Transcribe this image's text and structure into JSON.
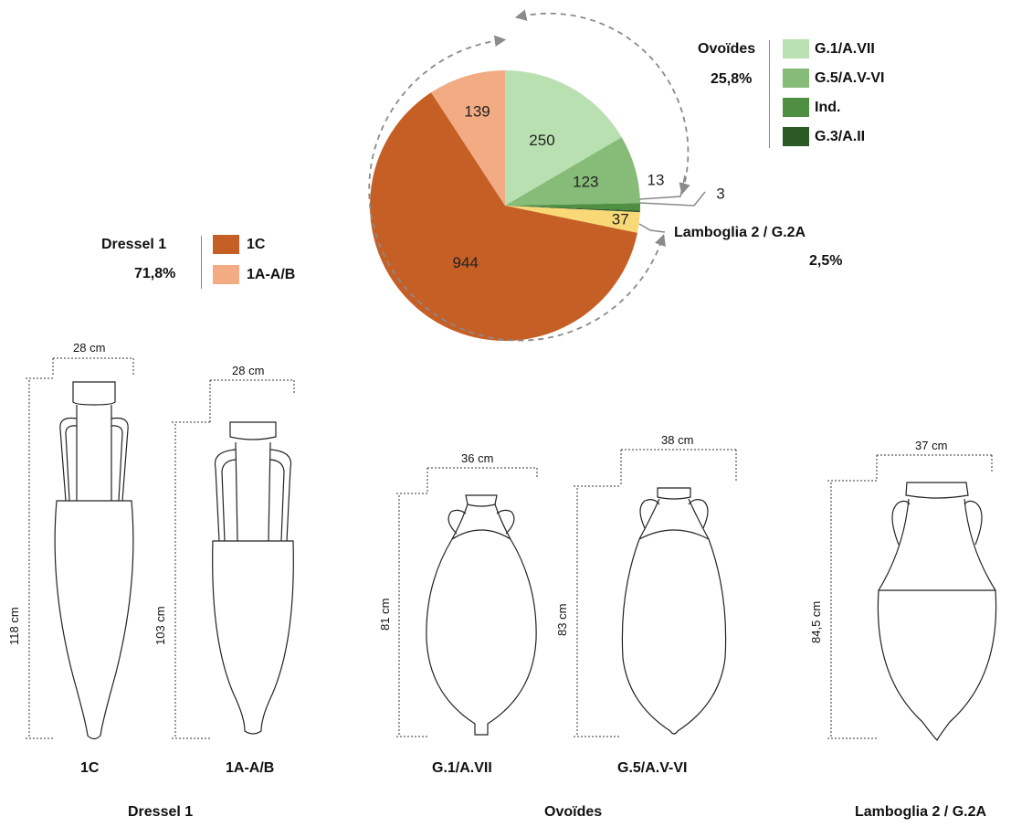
{
  "chart_data": {
    "type": "pie",
    "slices": [
      {
        "label": "G.1/A.VII",
        "value": 250,
        "value_label": "250",
        "color": "#b9e0b1"
      },
      {
        "label": "G.5/A.V-VI",
        "value": 123,
        "value_label": "123",
        "color": "#86bb78"
      },
      {
        "label": "Ind.",
        "value": 13,
        "value_label": "13",
        "color": "#4f8f42"
      },
      {
        "label": "G.3/A.II",
        "value": 3,
        "value_label": "3",
        "color": "#2c5a27"
      },
      {
        "label": "Lamboglia 2 / G.2A",
        "value": 37,
        "value_label": "37",
        "color": "#f8d877"
      },
      {
        "label": "1C",
        "value": 944,
        "value_label": "944",
        "color": "#c65f25"
      },
      {
        "label": "1A-A/B",
        "value": 139,
        "value_label": "139",
        "color": "#f2ab82"
      }
    ],
    "groups": [
      {
        "name": "Ovoïdes",
        "percent": "25,8%",
        "members": [
          "G.1/A.VII",
          "G.5/A.V-VI",
          "Ind.",
          "G.3/A.II"
        ]
      },
      {
        "name": "Lamboglia 2 / G.2A",
        "percent": "2,5%",
        "members": [
          "Lamboglia 2 / G.2A"
        ]
      },
      {
        "name": "Dressel 1",
        "percent": "71,8%",
        "members": [
          "1C",
          "1A-A/B"
        ]
      }
    ]
  },
  "legends": {
    "ovoides": {
      "title": "Ovoïdes",
      "percent": "25,8%",
      "items": [
        {
          "label": "G.1/A.VII",
          "color": "#b9e0b1"
        },
        {
          "label": "G.5/A.V-VI",
          "color": "#86bb78"
        },
        {
          "label": "Ind.",
          "color": "#4f8f42"
        },
        {
          "label": "G.3/A.II",
          "color": "#2c5a27"
        }
      ]
    },
    "lamboglia": {
      "title": "Lamboglia 2 / G.2A",
      "percent": "2,5%"
    },
    "dressel": {
      "title": "Dressel 1",
      "percent": "71,8%",
      "items": [
        {
          "label": "1C",
          "color": "#c65f25"
        },
        {
          "label": "1A-A/B",
          "color": "#f2ab82"
        }
      ]
    }
  },
  "amphorae": [
    {
      "type": "1C",
      "height_label": "118 cm",
      "width_label": "28 cm"
    },
    {
      "type": "1A-A/B",
      "height_label": "103 cm",
      "width_label": "28 cm"
    },
    {
      "type": "G.1/A.VII",
      "height_label": "81 cm",
      "width_label": "36 cm"
    },
    {
      "type": "G.5/A.V-VI",
      "height_label": "83 cm",
      "width_label": "38 cm"
    },
    {
      "type": "Lamboglia 2 / G.2A",
      "height_label": "84,5 cm",
      "width_label": "37 cm"
    }
  ],
  "group_labels": {
    "dressel": "Dressel 1",
    "ovoides": "Ovoïdes",
    "lamboglia": "Lamboglia 2 / G.2A"
  }
}
